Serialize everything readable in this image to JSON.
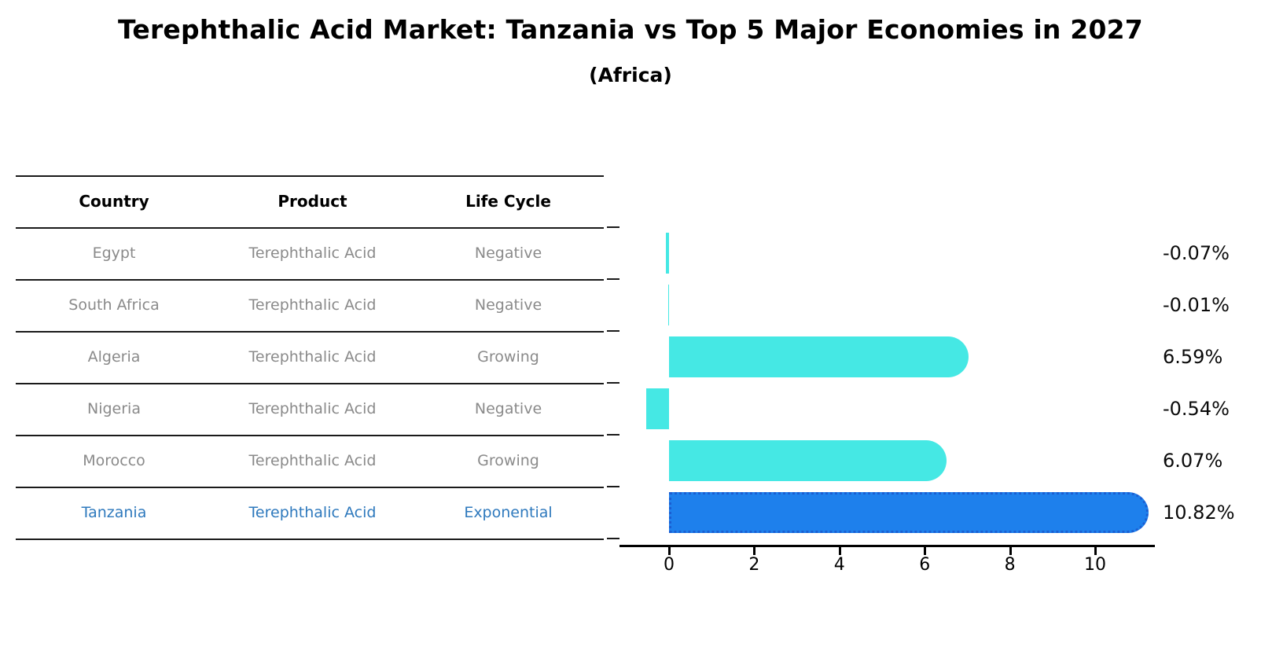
{
  "header": {
    "title": "Terephthalic Acid Market: Tanzania vs Top 5 Major Economies in 2027",
    "subtitle": "(Africa)"
  },
  "table": {
    "headers": [
      "Country",
      "Product",
      "Life Cycle"
    ],
    "rows": [
      {
        "country": "Egypt",
        "product": "Terephthalic Acid",
        "life_cycle": "Negative",
        "highlight": false
      },
      {
        "country": "South Africa",
        "product": "Terephthalic Acid",
        "life_cycle": "Negative",
        "highlight": false
      },
      {
        "country": "Algeria",
        "product": "Terephthalic Acid",
        "life_cycle": "Growing",
        "highlight": false
      },
      {
        "country": "Nigeria",
        "product": "Terephthalic Acid",
        "life_cycle": "Negative",
        "highlight": false
      },
      {
        "country": "Morocco",
        "product": "Terephthalic Acid",
        "life_cycle": "Growing",
        "highlight": false
      },
      {
        "country": "Tanzania",
        "product": "Terephthalic Acid",
        "life_cycle": "Exponential",
        "highlight": true
      }
    ]
  },
  "chart_data": {
    "type": "bar",
    "orientation": "horizontal",
    "title": "Terephthalic Acid Market: Tanzania vs Top 5 Major Economies in 2027",
    "subtitle": "(Africa)",
    "categories": [
      "Egypt",
      "South Africa",
      "Algeria",
      "Nigeria",
      "Morocco",
      "Tanzania"
    ],
    "values": [
      -0.07,
      -0.01,
      6.59,
      -0.54,
      6.07,
      10.82
    ],
    "value_labels": [
      "-0.07%",
      "-0.01%",
      "6.59%",
      "-0.54%",
      "6.07%",
      "10.82%"
    ],
    "unit": "percent",
    "highlight_index": 5,
    "xticks": [
      0,
      2,
      4,
      6,
      8,
      10
    ],
    "xlim": [
      -1.2,
      11.4
    ],
    "grid": false,
    "legend": false,
    "colors": {
      "bar": "#45E8E4",
      "highlight_bar": "#1E80EC",
      "highlight_border": "#1A5ED2",
      "highlight_text": "#2E79BD",
      "row_text": "#8A8A8A",
      "line": "#1A1A1A"
    }
  }
}
